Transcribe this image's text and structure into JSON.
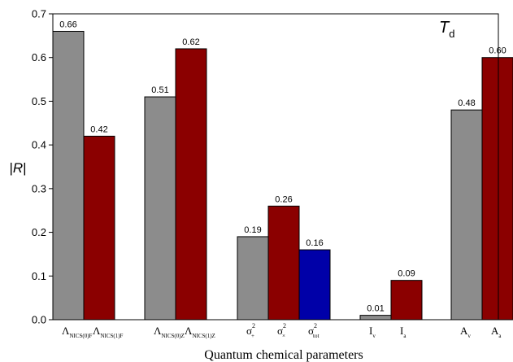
{
  "chart_data": {
    "type": "bar",
    "xlabel": "Quantum chemical parameters",
    "ylabel_prefix": "|",
    "ylabel_var": "R",
    "ylabel_suffix": "|",
    "annotation": {
      "main": "T",
      "sub": "d"
    },
    "ylim": [
      0.0,
      0.7
    ],
    "yticks": [
      "0.0",
      "0.1",
      "0.2",
      "0.3",
      "0.4",
      "0.5",
      "0.6",
      "0.7"
    ],
    "grid": false,
    "colors": {
      "gray": "#8c8c8c",
      "darkred": "#8b0000",
      "blue": "#0000a8"
    },
    "groups": [
      {
        "bars": [
          {
            "base": "Λ",
            "sub": "NICS(0)F",
            "sup": "",
            "value": 0.66,
            "label": "0.66",
            "color": "gray"
          },
          {
            "base": "Λ",
            "sub": "NICS(1)F",
            "sup": "",
            "value": 0.42,
            "label": "0.42",
            "color": "darkred"
          }
        ]
      },
      {
        "bars": [
          {
            "base": "Λ",
            "sub": "NICS(0)Z",
            "sup": "",
            "value": 0.51,
            "label": "0.51",
            "color": "gray"
          },
          {
            "base": "Λ",
            "sub": "NICS(1)Z",
            "sup": "",
            "value": 0.62,
            "label": "0.62",
            "color": "darkred"
          }
        ]
      },
      {
        "bars": [
          {
            "base": "σ",
            "sub": "+",
            "sup": "2",
            "value": 0.19,
            "label": "0.19",
            "color": "gray"
          },
          {
            "base": "σ",
            "sub": "×",
            "sup": "2",
            "value": 0.26,
            "label": "0.26",
            "color": "darkred"
          },
          {
            "base": "σ",
            "sub": "tot",
            "sup": "2",
            "value": 0.16,
            "label": "0.16",
            "color": "blue"
          }
        ]
      },
      {
        "bars": [
          {
            "base": "I",
            "sub": "v",
            "sup": "",
            "value": 0.01,
            "label": "0.01",
            "color": "gray"
          },
          {
            "base": "I",
            "sub": "a",
            "sup": "",
            "value": 0.09,
            "label": "0.09",
            "color": "darkred"
          }
        ]
      },
      {
        "bars": [
          {
            "base": "A",
            "sub": "v",
            "sup": "",
            "value": 0.48,
            "label": "0.48",
            "color": "gray"
          },
          {
            "base": "A",
            "sub": "a",
            "sup": "",
            "value": 0.6,
            "label": "0.60",
            "color": "darkred"
          }
        ]
      }
    ]
  }
}
